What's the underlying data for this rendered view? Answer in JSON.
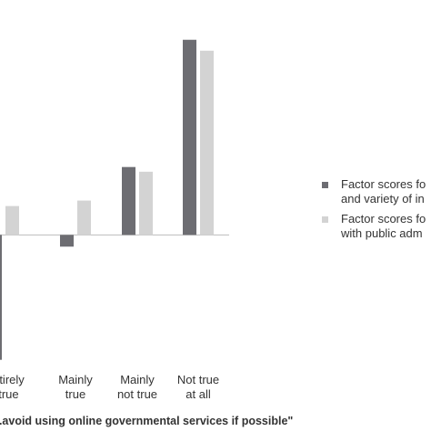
{
  "chart_data": {
    "type": "bar",
    "categories": [
      [
        "...ntirely",
        "...true"
      ],
      [
        "Mainly",
        "true"
      ],
      [
        "Mainly",
        "not true"
      ],
      [
        "Not true",
        "at all"
      ]
    ],
    "series": [
      {
        "name": "Factor scores fo... and variety of in...",
        "legend_lines": [
          "Factor scores fo",
          "and variety of in"
        ],
        "color": "#6d6d72",
        "values": [
          -1.6,
          -0.15,
          0.87,
          2.5
        ]
      },
      {
        "name": "Factor scores fo... with public adm...",
        "legend_lines": [
          "Factor scores fo",
          "with public adm"
        ],
        "color": "#d3d3d3",
        "values": [
          0.37,
          0.44,
          0.81,
          2.36
        ]
      }
    ],
    "xlabel": "...avoid using online governmental services if possible\"",
    "ylabel": "",
    "ylim": [
      -1.65,
      2.8
    ],
    "legend": "right",
    "grid": false
  }
}
